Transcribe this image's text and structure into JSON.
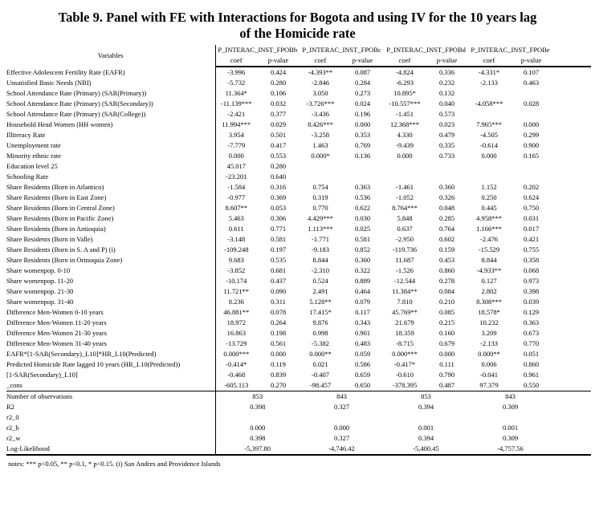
{
  "title": {
    "line1": "Table 9. Panel with FE with Interactions for Bogota and using IV for the 10 years lag",
    "line2": "of the Homicide rate"
  },
  "table": {
    "variables_header": "Variables",
    "group_headers": [
      "P_INTERAC_INST_FPOBb",
      "P_INTERAC_INST_FPOBc",
      "P_INTERAC_INST_FPOBd",
      "P_INTERAC_INST_FPOBe"
    ],
    "sub_headers": [
      "coef",
      "p-value"
    ],
    "rows": [
      {
        "label": "Effective Adolescent Fertility Rate (EAFR)",
        "values": [
          "-3.996",
          "0.424",
          "-4.393**",
          "0.087",
          "-4.824",
          "0.336",
          "-4.331*",
          "0.107"
        ]
      },
      {
        "label": "Unsatisfied Basic Needs (NBI)",
        "values": [
          "-5.732",
          "0.280",
          "-2.846",
          "0.284",
          "-6.293",
          "0.232",
          "-2.133",
          "0.463"
        ]
      },
      {
        "label": "School Attendance Rate (Primary) (SAR(Primary))",
        "values": [
          "11.364*",
          "0.106",
          "3.050",
          "0.273",
          "10.895*",
          "0.132",
          "",
          ""
        ]
      },
      {
        "label": "School Attendance Rate (Primary) (SAR(Secondary))",
        "values": [
          "-11.139***",
          "0.032",
          "-3.726***",
          "0.024",
          "-10.557***",
          "0.040",
          "-4.058***",
          "0.028"
        ]
      },
      {
        "label": "School Attendance Rate (Primary) (SAR(College))",
        "values": [
          "-2.421",
          "0.377",
          "-3.436",
          "0.196",
          "-1.451",
          "0.573",
          "",
          ""
        ]
      },
      {
        "label": "Household Head Women (HH women)",
        "values": [
          "11.994***",
          "0.029",
          "8.426***",
          "0.000",
          "12.368***",
          "0.023",
          "7.965***",
          "0.000"
        ]
      },
      {
        "label": "Illiteracy Rate",
        "values": [
          "3.954",
          "0.501",
          "-3.258",
          "0.353",
          "4.330",
          "0.479",
          "-4.505",
          "0.299"
        ]
      },
      {
        "label": "Unemployment rate",
        "values": [
          "-7.779",
          "0.417",
          "1.463",
          "0.769",
          "-9.439",
          "0.335",
          "-0.614",
          "0.900"
        ]
      },
      {
        "label": "Minority ethnic rate",
        "values": [
          "0.000",
          "0.553",
          "0.000*",
          "0.136",
          "0.000",
          "0.733",
          "0.000",
          "0.165"
        ]
      },
      {
        "label": "Education level 25",
        "values": [
          "45.017",
          "0.280",
          "",
          "",
          "",
          "",
          "",
          ""
        ]
      },
      {
        "label": "Schooling Rate",
        "values": [
          "-23.201",
          "0.640",
          "",
          "",
          "",
          "",
          "",
          ""
        ]
      },
      {
        "label": "Share Residents (Born in Atlantico)",
        "values": [
          "-1.584",
          "0.316",
          "0.754",
          "0.363",
          "-1.461",
          "0.360",
          "1.152",
          "0.202"
        ]
      },
      {
        "label": "Share Residents (Born in East Zone)",
        "values": [
          "-0.977",
          "0.369",
          "0.319",
          "0.536",
          "-1.052",
          "0.326",
          "0.250",
          "0.624"
        ]
      },
      {
        "label": "Share Residents (Born in Central Zone)",
        "values": [
          "8.607**",
          "0.053",
          "0.770",
          "0.622",
          "8.764***",
          "0.048",
          "0.445",
          "0.750"
        ]
      },
      {
        "label": "Share Residents (Born in Pacific Zone)",
        "values": [
          "5.463",
          "0.306",
          "4.429***",
          "0.030",
          "5.848",
          "0.285",
          "4.958***",
          "0.031"
        ]
      },
      {
        "label": "Share Residents (Born in Antioquia)",
        "values": [
          "0.611",
          "0.771",
          "1.113***",
          "0.025",
          "0.637",
          "0.764",
          "1.166***",
          "0.017"
        ]
      },
      {
        "label": "Share Residents (Born in Valle)",
        "values": [
          "-3.148",
          "0.581",
          "-1.771",
          "0.581",
          "-2.950",
          "0.602",
          "-2.476",
          "0.421"
        ]
      },
      {
        "label": "Share Residents (Born in S. A and P) (i)",
        "values": [
          "-109.248",
          "0.197",
          "-9.183",
          "0.852",
          "-119.736",
          "0.159",
          "-15.529",
          "0.755"
        ]
      },
      {
        "label": "Share Residents (Born in Orinoquia Zone)",
        "values": [
          "9.683",
          "0.535",
          "8.844",
          "0.360",
          "11.687",
          "0.453",
          "8.844",
          "0.358"
        ]
      },
      {
        "label": "Share womenpop. 0-10",
        "values": [
          "-3.852",
          "0.681",
          "-2.310",
          "0.322",
          "-1.526",
          "0.860",
          "-4.933**",
          "0.068"
        ]
      },
      {
        "label": "Share womenpop. 11-20",
        "values": [
          "-10.174",
          "0.437",
          "0.524",
          "0.889",
          "-12.544",
          "0.278",
          "0.127",
          "0.973"
        ]
      },
      {
        "label": "Share womenpop. 21-30",
        "values": [
          "11.721**",
          "0.090",
          "2.491",
          "0.464",
          "11.384**",
          "0.084",
          "2.802",
          "0.398"
        ]
      },
      {
        "label": "Share womenpop. 31-40",
        "values": [
          "8.236",
          "0.311",
          "5.128**",
          "0.079",
          "7.810",
          "0.210",
          "8.308***",
          "0.039"
        ]
      },
      {
        "label": "Difference Men-Women 0-10 years",
        "values": [
          "46.881**",
          "0.078",
          "17.415*",
          "0.117",
          "45.769**",
          "0.085",
          "18.578*",
          "0.129"
        ]
      },
      {
        "label": "Difference Men-Women 11-20 years",
        "values": [
          "18.972",
          "0.264",
          "9.876",
          "0.343",
          "21.679",
          "0.215",
          "10.232",
          "0.363"
        ]
      },
      {
        "label": "Difference Men-Women 21-30 years",
        "values": [
          "16.863",
          "0.198",
          "0.998",
          "0.901",
          "18.359",
          "0.160",
          "3.209",
          "0.673"
        ]
      },
      {
        "label": "Difference Men-Women 31-40 years",
        "values": [
          "-13.729",
          "0.561",
          "-5.382",
          "0.483",
          "-8.715",
          "0.679",
          "-2.133",
          "0.770"
        ]
      },
      {
        "label": "EAFR*[1-SAR(Secondary)_L10]*HR_L10(Predicted)",
        "values": [
          "0.000***",
          "0.000",
          "0.000**",
          "0.059",
          "0.000***",
          "0.000",
          "0.000**",
          "0.051"
        ]
      },
      {
        "label": "Predicted Homicide Rate lagged 10 years (HR_L10(Predicted))",
        "values": [
          "-0.414*",
          "0.119",
          "0.021",
          "0.586",
          "-0.417*",
          "0.111",
          "0.006",
          "0.860"
        ]
      },
      {
        "label": "[1-SAR(Secondary)_L10]",
        "values": [
          "-0.468",
          "0.839",
          "-0.407",
          "0.659",
          "-0.610",
          "0.790",
          "-0.041",
          "0.961"
        ]
      },
      {
        "label": "_cons",
        "values": [
          "-605.113",
          "0.270",
          "-98.457",
          "0.650",
          "-378.395",
          "0.487",
          "97.379",
          "0.550"
        ]
      }
    ],
    "summary_rows": [
      {
        "label": "Number of observations",
        "values": [
          "853",
          "843",
          "853",
          "843"
        ]
      },
      {
        "label": "R2",
        "values": [
          "0.398",
          "0.327",
          "0.394",
          "0.309"
        ]
      },
      {
        "label": "r2_0",
        "values": [
          "",
          "",
          "",
          ""
        ]
      },
      {
        "label": "r2_b",
        "values": [
          "0.000",
          "0.000",
          "0.001",
          "0.001"
        ]
      },
      {
        "label": "r2_w",
        "values": [
          "0.398",
          "0.327",
          "0.394",
          "0.309"
        ]
      },
      {
        "label": "Log-Likelihood",
        "values": [
          "-5,397.80",
          "-4,746.42",
          "-5,400.45",
          "-4,757.56"
        ]
      }
    ],
    "notes": "notes:  *** p<0.05, ** p<0.1, * p<0.15. (i) San Andres and Providence Islands"
  }
}
